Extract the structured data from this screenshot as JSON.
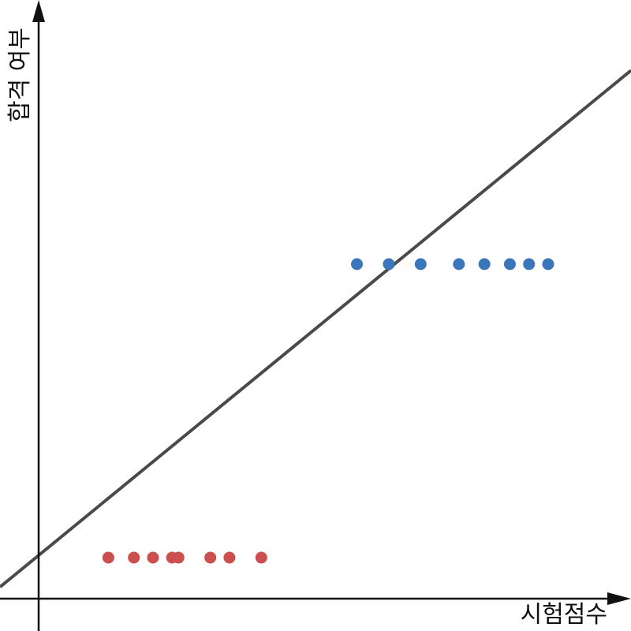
{
  "chart_data": {
    "type": "scatter",
    "title": "",
    "xlabel": "시험점수",
    "ylabel": "합격 여부",
    "grid": false,
    "legend": "none",
    "xlim": [
      -0.6,
      9.3
    ],
    "ylim": [
      -0.25,
      1.9
    ],
    "series": [
      {
        "color": "#cc4f4f",
        "points": [
          {
            "x": 1.1,
            "y": 0
          },
          {
            "x": 1.5,
            "y": 0
          },
          {
            "x": 1.8,
            "y": 0
          },
          {
            "x": 2.1,
            "y": 0
          },
          {
            "x": 2.2,
            "y": 0
          },
          {
            "x": 2.7,
            "y": 0
          },
          {
            "x": 3.0,
            "y": 0
          },
          {
            "x": 3.5,
            "y": 0
          }
        ]
      },
      {
        "color": "#3b76bb",
        "points": [
          {
            "x": 5.0,
            "y": 1
          },
          {
            "x": 5.5,
            "y": 1
          },
          {
            "x": 6.0,
            "y": 1
          },
          {
            "x": 6.6,
            "y": 1
          },
          {
            "x": 7.0,
            "y": 1
          },
          {
            "x": 7.4,
            "y": 1
          },
          {
            "x": 7.7,
            "y": 1
          },
          {
            "x": 8.0,
            "y": 1
          }
        ]
      }
    ],
    "fit_line": {
      "color": "#4a4a4a",
      "from": {
        "x": -0.6,
        "y": -0.1
      },
      "to": {
        "x": 9.3,
        "y": 1.66
      }
    },
    "axis_color": "#111111"
  }
}
